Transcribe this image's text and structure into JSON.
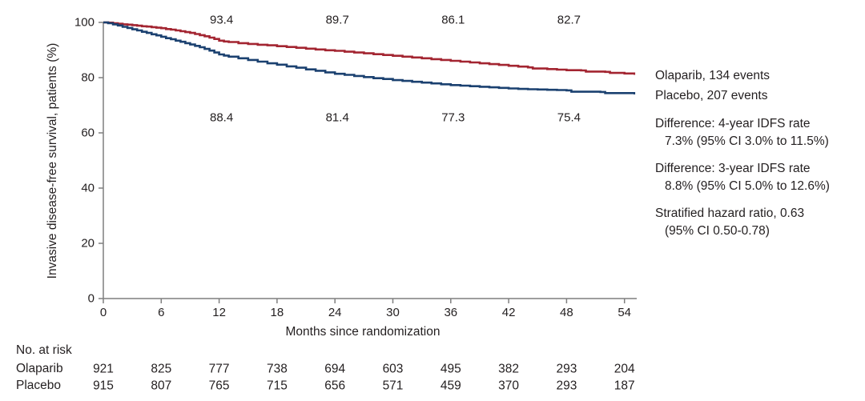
{
  "figure": {
    "y_axis_title": "Invasive disease-free survival, patients (%)",
    "x_axis_title": "Months since randomization"
  },
  "chart_data": {
    "type": "line",
    "subtype": "kaplan-meier-step",
    "title": "",
    "xlabel": "Months since randomization",
    "ylabel": "Invasive disease-free survival, patients (%)",
    "xlim": [
      0,
      56
    ],
    "ylim": [
      0,
      100
    ],
    "x_ticks": [
      0,
      6,
      12,
      18,
      24,
      30,
      36,
      42,
      48,
      54
    ],
    "y_ticks": [
      0,
      20,
      40,
      60,
      80,
      100
    ],
    "grid": false,
    "legend_position": "right-outside",
    "series": [
      {
        "name": "Olaparib",
        "events": 134,
        "color": "#A32531",
        "points": [
          [
            0,
            100
          ],
          [
            0.5,
            99.9
          ],
          [
            1,
            99.7
          ],
          [
            1.5,
            99.5
          ],
          [
            2,
            99.3
          ],
          [
            2.5,
            99.2
          ],
          [
            3,
            99.0
          ],
          [
            3.5,
            98.8
          ],
          [
            4,
            98.6
          ],
          [
            4.5,
            98.5
          ],
          [
            5,
            98.3
          ],
          [
            5.5,
            98.1
          ],
          [
            6,
            97.9
          ],
          [
            6.5,
            97.6
          ],
          [
            7,
            97.4
          ],
          [
            7.5,
            97.1
          ],
          [
            8,
            96.8
          ],
          [
            8.5,
            96.5
          ],
          [
            9,
            96.2
          ],
          [
            9.5,
            95.8
          ],
          [
            10,
            95.4
          ],
          [
            10.5,
            95.0
          ],
          [
            11,
            94.5
          ],
          [
            11.5,
            94.0
          ],
          [
            12,
            93.4
          ],
          [
            12.5,
            93.1
          ],
          [
            13,
            92.9
          ],
          [
            14,
            92.5
          ],
          [
            15,
            92.2
          ],
          [
            16,
            91.9
          ],
          [
            17,
            91.7
          ],
          [
            18,
            91.4
          ],
          [
            19,
            91.1
          ],
          [
            20,
            90.8
          ],
          [
            21,
            90.5
          ],
          [
            22,
            90.2
          ],
          [
            23,
            89.9
          ],
          [
            24,
            89.7
          ],
          [
            25,
            89.4
          ],
          [
            26,
            89.1
          ],
          [
            27,
            88.8
          ],
          [
            28,
            88.5
          ],
          [
            29,
            88.2
          ],
          [
            30,
            87.9
          ],
          [
            31,
            87.6
          ],
          [
            32,
            87.3
          ],
          [
            33,
            87.0
          ],
          [
            34,
            86.7
          ],
          [
            35,
            86.4
          ],
          [
            36,
            86.1
          ],
          [
            37,
            85.8
          ],
          [
            38,
            85.5
          ],
          [
            39,
            85.2
          ],
          [
            40,
            84.9
          ],
          [
            41,
            84.6
          ],
          [
            42,
            84.3
          ],
          [
            43,
            84.0
          ],
          [
            44,
            83.7
          ],
          [
            44.5,
            83.3
          ],
          [
            46,
            83.1
          ],
          [
            47,
            82.9
          ],
          [
            48,
            82.7
          ],
          [
            49.5,
            82.6
          ],
          [
            50,
            82.2
          ],
          [
            52,
            82.1
          ],
          [
            52.5,
            81.7
          ],
          [
            54,
            81.5
          ],
          [
            55,
            81.4
          ]
        ]
      },
      {
        "name": "Placebo",
        "events": 207,
        "color": "#1B4170",
        "points": [
          [
            0,
            100
          ],
          [
            0.5,
            99.7
          ],
          [
            1,
            99.3
          ],
          [
            1.5,
            98.9
          ],
          [
            2,
            98.4
          ],
          [
            2.5,
            98.0
          ],
          [
            3,
            97.5
          ],
          [
            3.5,
            97.1
          ],
          [
            4,
            96.6
          ],
          [
            4.5,
            96.2
          ],
          [
            5,
            95.7
          ],
          [
            5.5,
            95.3
          ],
          [
            6,
            94.8
          ],
          [
            6.5,
            94.3
          ],
          [
            7,
            93.9
          ],
          [
            7.5,
            93.4
          ],
          [
            8,
            93.0
          ],
          [
            8.5,
            92.5
          ],
          [
            9,
            92.0
          ],
          [
            9.5,
            91.5
          ],
          [
            10,
            91.0
          ],
          [
            10.5,
            90.4
          ],
          [
            11,
            89.8
          ],
          [
            11.5,
            89.1
          ],
          [
            12,
            88.4
          ],
          [
            12.5,
            88.0
          ],
          [
            13,
            87.6
          ],
          [
            14,
            87.0
          ],
          [
            15,
            86.4
          ],
          [
            16,
            85.8
          ],
          [
            17,
            85.2
          ],
          [
            18,
            84.7
          ],
          [
            19,
            84.1
          ],
          [
            20,
            83.6
          ],
          [
            21,
            83.0
          ],
          [
            22,
            82.5
          ],
          [
            23,
            81.9
          ],
          [
            24,
            81.4
          ],
          [
            25,
            81.0
          ],
          [
            26,
            80.6
          ],
          [
            27,
            80.2
          ],
          [
            28,
            79.8
          ],
          [
            29,
            79.5
          ],
          [
            30,
            79.1
          ],
          [
            31,
            78.8
          ],
          [
            32,
            78.5
          ],
          [
            33,
            78.2
          ],
          [
            34,
            77.9
          ],
          [
            35,
            77.6
          ],
          [
            36,
            77.3
          ],
          [
            37,
            77.1
          ],
          [
            38,
            76.9
          ],
          [
            39,
            76.7
          ],
          [
            40,
            76.5
          ],
          [
            41,
            76.3
          ],
          [
            42,
            76.1
          ],
          [
            43,
            75.9
          ],
          [
            44,
            75.8
          ],
          [
            45,
            75.7
          ],
          [
            46,
            75.6
          ],
          [
            47,
            75.5
          ],
          [
            48,
            75.4
          ],
          [
            48.5,
            74.9
          ],
          [
            51.5,
            74.8
          ],
          [
            52,
            74.4
          ],
          [
            55,
            74.3
          ]
        ]
      }
    ],
    "landmark_annotations": {
      "months": [
        12,
        24,
        36,
        48
      ],
      "olaparib": [
        "93.4",
        "89.7",
        "86.1",
        "82.7"
      ],
      "placebo": [
        "88.4",
        "81.4",
        "77.3",
        "75.4"
      ]
    }
  },
  "side_panel": {
    "legend": [
      "Olaparib, 134 events",
      "Placebo, 207 events"
    ],
    "stats": [
      {
        "line1": "Difference: 4-year IDFS rate",
        "line2": "7.3% (95% CI 3.0% to 11.5%)"
      },
      {
        "line1": "Difference: 3-year IDFS rate",
        "line2": "8.8% (95% CI 5.0% to 12.6%)"
      },
      {
        "line1": "Stratified hazard ratio, 0.63",
        "line2": "(95% CI 0.50-0.78)"
      }
    ]
  },
  "risk_table": {
    "title": "No. at risk",
    "months": [
      0,
      6,
      12,
      18,
      24,
      30,
      36,
      42,
      48,
      54
    ],
    "rows": [
      {
        "label": "Olaparib",
        "values": [
          "921",
          "825",
          "777",
          "738",
          "694",
          "603",
          "495",
          "382",
          "293",
          "204"
        ]
      },
      {
        "label": "Placebo",
        "values": [
          "915",
          "807",
          "765",
          "715",
          "656",
          "571",
          "459",
          "370",
          "293",
          "187"
        ]
      }
    ]
  },
  "colors": {
    "olaparib": "#A32531",
    "placebo": "#1B4170",
    "axis": "#7f7f7f",
    "text": "#231f20"
  }
}
